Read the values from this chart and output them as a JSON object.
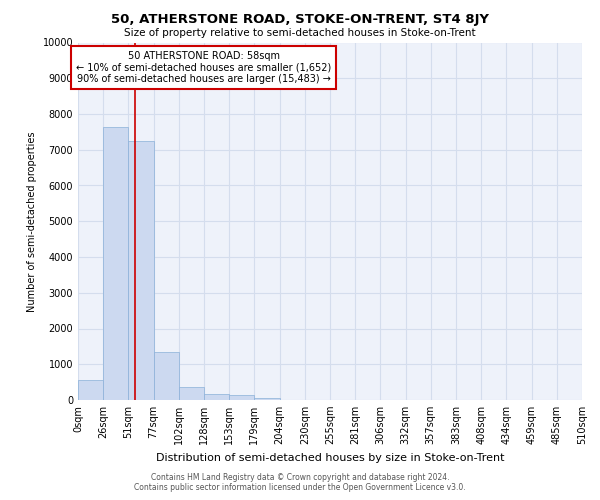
{
  "title": "50, ATHERSTONE ROAD, STOKE-ON-TRENT, ST4 8JY",
  "subtitle": "Size of property relative to semi-detached houses in Stoke-on-Trent",
  "xlabel": "Distribution of semi-detached houses by size in Stoke-on-Trent",
  "ylabel": "Number of semi-detached properties",
  "footer_line1": "Contains HM Land Registry data © Crown copyright and database right 2024.",
  "footer_line2": "Contains public sector information licensed under the Open Government Licence v3.0.",
  "bar_color": "#ccd9f0",
  "bar_edge_color": "#8ab0d8",
  "property_sqm": 58,
  "annotation_title": "50 ATHERSTONE ROAD: 58sqm",
  "annotation_line1": "← 10% of semi-detached houses are smaller (1,652)",
  "annotation_line2": "90% of semi-detached houses are larger (15,483) →",
  "annotation_box_color": "#ffffff",
  "annotation_border_color": "#cc0000",
  "vline_color": "#cc0000",
  "ylim": [
    0,
    10000
  ],
  "bin_edges": [
    0,
    25.5,
    51,
    76.5,
    102,
    127.5,
    153,
    178.5,
    204,
    229.5,
    255,
    280.5,
    306,
    331.5,
    357,
    382.5,
    408,
    433.5,
    459,
    484.5,
    510
  ],
  "bin_labels": [
    "0sqm",
    "26sqm",
    "51sqm",
    "77sqm",
    "102sqm",
    "128sqm",
    "153sqm",
    "179sqm",
    "204sqm",
    "230sqm",
    "255sqm",
    "281sqm",
    "306sqm",
    "332sqm",
    "357sqm",
    "383sqm",
    "408sqm",
    "434sqm",
    "459sqm",
    "485sqm",
    "510sqm"
  ],
  "bar_heights": [
    550,
    7650,
    7250,
    1350,
    350,
    175,
    130,
    50,
    0,
    0,
    0,
    0,
    0,
    0,
    0,
    0,
    0,
    0,
    0,
    0
  ],
  "grid_color": "#d4dded",
  "yticks": [
    0,
    1000,
    2000,
    3000,
    4000,
    5000,
    6000,
    7000,
    8000,
    9000,
    10000
  ],
  "background_color": "#eef2fa",
  "title_fontsize": 9.5,
  "subtitle_fontsize": 7.5,
  "ylabel_fontsize": 7,
  "xlabel_fontsize": 8,
  "tick_fontsize": 7,
  "footer_fontsize": 5.5,
  "annot_fontsize": 7
}
